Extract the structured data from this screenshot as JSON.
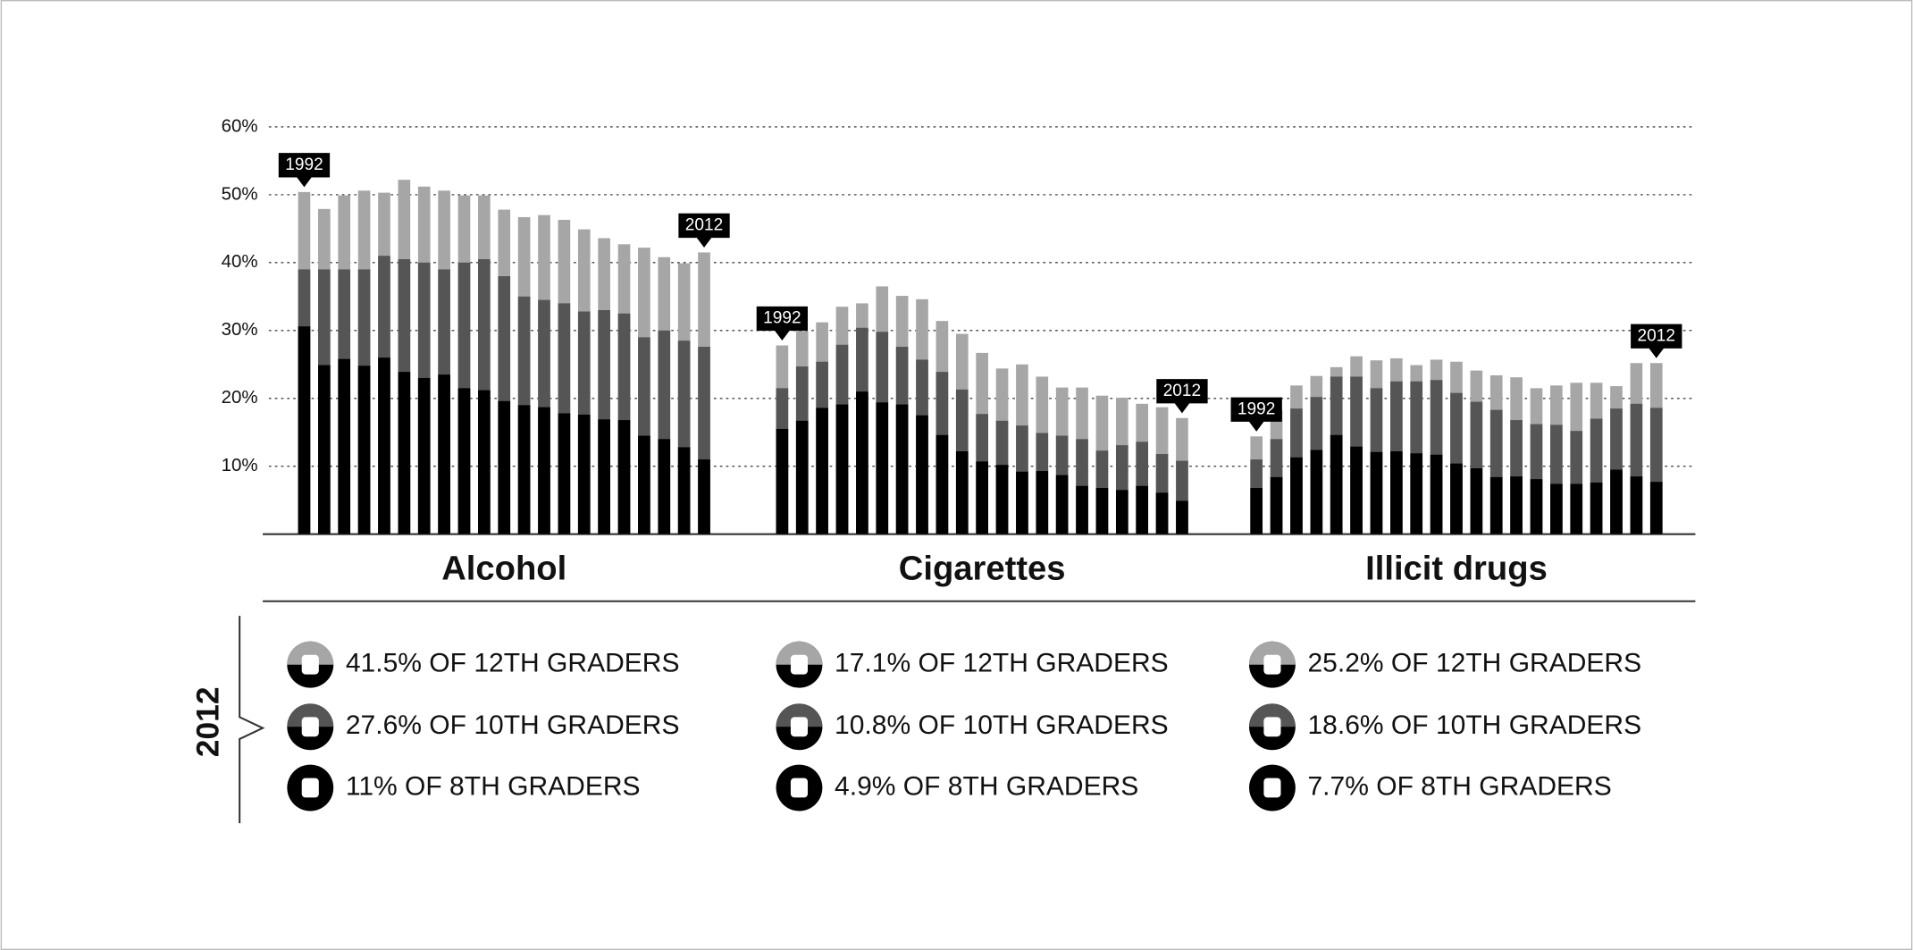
{
  "legend_title": "2012",
  "chart_data": [
    {
      "type": "bar",
      "title": "Alcohol",
      "categories": [
        "1992",
        null,
        null,
        null,
        null,
        null,
        null,
        null,
        null,
        null,
        null,
        null,
        null,
        null,
        null,
        null,
        null,
        null,
        null,
        null,
        "2012"
      ],
      "ylim": [
        0,
        60
      ],
      "yticks": [
        {
          "value": 10,
          "label": "10%"
        },
        {
          "value": 20,
          "label": "20%"
        },
        {
          "value": 30,
          "label": "30%"
        },
        {
          "value": 40,
          "label": "40%"
        },
        {
          "value": 50,
          "label": "50%"
        },
        {
          "value": 60,
          "label": "60%"
        }
      ],
      "grid": true,
      "series": [
        {
          "color": "#a6a6a6",
          "values": [
            50.4,
            47.9,
            49.9,
            50.6,
            50.3,
            52.2,
            51.2,
            50.6,
            49.9,
            49.9,
            47.8,
            46.7,
            47.0,
            46.3,
            44.9,
            43.6,
            42.7,
            42.2,
            40.8,
            39.9,
            41.5
          ]
        },
        {
          "color": "#555555",
          "values": [
            39,
            39,
            39,
            39,
            41,
            40.5,
            40,
            39,
            40,
            40.5,
            38,
            35,
            34.5,
            34,
            32.8,
            33,
            32.5,
            29,
            30,
            28.5,
            27.6
          ]
        },
        {
          "color": "#000000",
          "values": [
            30.6,
            24.9,
            25.8,
            24.8,
            26.0,
            23.9,
            23.0,
            23.5,
            21.5,
            21.2,
            19.6,
            19.0,
            18.7,
            17.8,
            17.6,
            16.9,
            16.8,
            14.5,
            14.0,
            12.8,
            11
          ]
        }
      ],
      "legend": [
        "41.5% OF 12TH GRADERS",
        "27.6% OF 10TH GRADERS",
        "11% OF 8TH GRADERS"
      ]
    },
    {
      "type": "bar",
      "title": "Cigarettes",
      "categories": [
        "1992",
        null,
        null,
        null,
        null,
        null,
        null,
        null,
        null,
        null,
        null,
        null,
        null,
        null,
        null,
        null,
        null,
        null,
        null,
        null,
        "2012"
      ],
      "ylim": [
        0,
        60
      ],
      "series": [
        {
          "color": "#a6a6a6",
          "values": [
            27.8,
            29.9,
            31.2,
            33.5,
            34.0,
            36.5,
            35.1,
            34.6,
            31.4,
            29.5,
            26.7,
            24.4,
            25.0,
            23.2,
            21.6,
            21.6,
            20.4,
            20.1,
            19.2,
            18.7,
            17.1
          ]
        },
        {
          "color": "#555555",
          "values": [
            21.5,
            24.7,
            25.4,
            27.9,
            30.4,
            29.8,
            27.6,
            25.7,
            23.9,
            21.3,
            17.7,
            16.7,
            16.0,
            14.9,
            14.5,
            14.0,
            12.3,
            13.1,
            13.6,
            11.8,
            10.8
          ]
        },
        {
          "color": "#000000",
          "values": [
            15.5,
            16.7,
            18.6,
            19.1,
            21.0,
            19.4,
            19.1,
            17.5,
            14.6,
            12.2,
            10.7,
            10.2,
            9.2,
            9.3,
            8.7,
            7.1,
            6.8,
            6.5,
            7.1,
            6.1,
            4.9
          ]
        }
      ],
      "legend": [
        "17.1% OF 12TH GRADERS",
        "10.8% OF 10TH GRADERS",
        "4.9% OF 8TH GRADERS"
      ]
    },
    {
      "type": "bar",
      "title": "Illicit drugs",
      "categories": [
        "1992",
        null,
        null,
        null,
        null,
        null,
        null,
        null,
        null,
        null,
        null,
        null,
        null,
        null,
        null,
        null,
        null,
        null,
        null,
        null,
        "2012"
      ],
      "ylim": [
        0,
        60
      ],
      "series": [
        {
          "color": "#a6a6a6",
          "values": [
            14.4,
            18.3,
            21.9,
            23.3,
            24.6,
            26.2,
            25.6,
            25.9,
            24.9,
            25.7,
            25.4,
            24.1,
            23.4,
            23.1,
            21.5,
            21.9,
            22.3,
            22.3,
            21.8,
            25.2,
            25.2
          ]
        },
        {
          "color": "#555555",
          "values": [
            11.0,
            14.0,
            18.5,
            20.2,
            23.2,
            23.2,
            21.5,
            22.5,
            22.5,
            22.7,
            20.8,
            19.5,
            18.3,
            16.8,
            16.2,
            16.1,
            15.2,
            17.0,
            18.5,
            19.2,
            18.6
          ]
        },
        {
          "color": "#000000",
          "values": [
            6.8,
            8.4,
            11.3,
            12.4,
            14.6,
            12.9,
            12.1,
            12.2,
            11.9,
            11.7,
            10.4,
            9.7,
            8.4,
            8.5,
            8.1,
            7.4,
            7.4,
            7.6,
            9.5,
            8.5,
            7.7
          ]
        }
      ],
      "legend": [
        "25.2% OF 12TH GRADERS",
        "18.6% OF 10TH GRADERS",
        "7.7% OF 8TH GRADERS"
      ]
    }
  ]
}
